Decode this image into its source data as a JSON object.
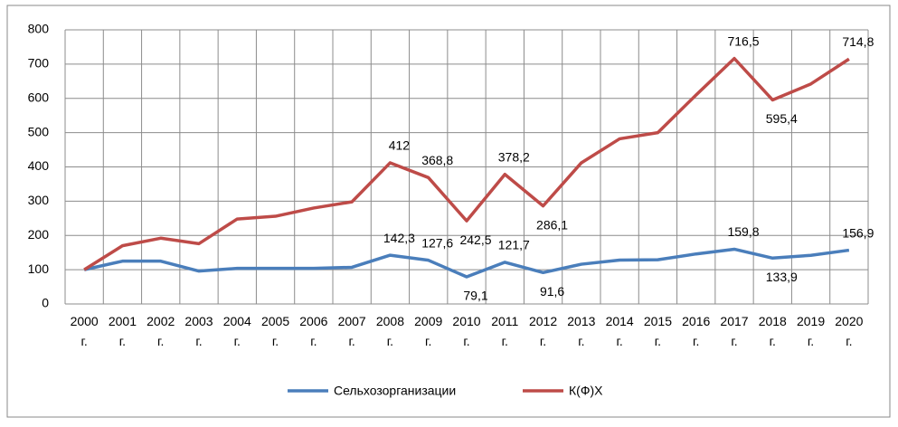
{
  "chart_data": {
    "type": "line",
    "categories": [
      "2000 г.",
      "2001 г.",
      "2002 г.",
      "2003 г.",
      "2004 г.",
      "2005 г.",
      "2006 г.",
      "2007 г.",
      "2008 г.",
      "2009 г.",
      "2010 г.",
      "2011 г.",
      "2012 г.",
      "2013 г.",
      "2014 г.",
      "2015 г.",
      "2016 г.",
      "2017 г.",
      "2018 г.",
      "2019 г.",
      "2020 г."
    ],
    "series": [
      {
        "name": "Сельхозорганизации",
        "color": "#4a7ebb",
        "values": [
          100,
          125,
          125,
          96,
          104,
          104,
          104,
          107,
          142.3,
          127.6,
          79.1,
          121.7,
          91.6,
          116,
          128,
          129,
          146,
          159.8,
          133.9,
          142,
          156.9
        ],
        "value_labels": [
          null,
          null,
          null,
          null,
          null,
          null,
          null,
          null,
          "142,3",
          "127,6",
          "79,1",
          "121,7",
          "91,6",
          null,
          null,
          null,
          null,
          "159,8",
          "133,9",
          null,
          "156,9"
        ]
      },
      {
        "name": "К(Ф)Х",
        "color": "#be4b48",
        "values": [
          100,
          170,
          192,
          176,
          248,
          256,
          280,
          298,
          412,
          368.8,
          242.5,
          378.2,
          286.1,
          412,
          482,
          500,
          610,
          716.5,
          595.4,
          642,
          714.8
        ],
        "value_labels": [
          null,
          null,
          null,
          null,
          null,
          null,
          null,
          null,
          "412",
          "368,8",
          "242,5",
          "378,2",
          "286,1",
          null,
          null,
          null,
          null,
          "716,5",
          "595,4",
          null,
          "714,8"
        ]
      }
    ],
    "ylim": [
      0,
      800
    ],
    "yticks": [
      0,
      100,
      200,
      300,
      400,
      500,
      600,
      700,
      800
    ],
    "grid": true
  }
}
